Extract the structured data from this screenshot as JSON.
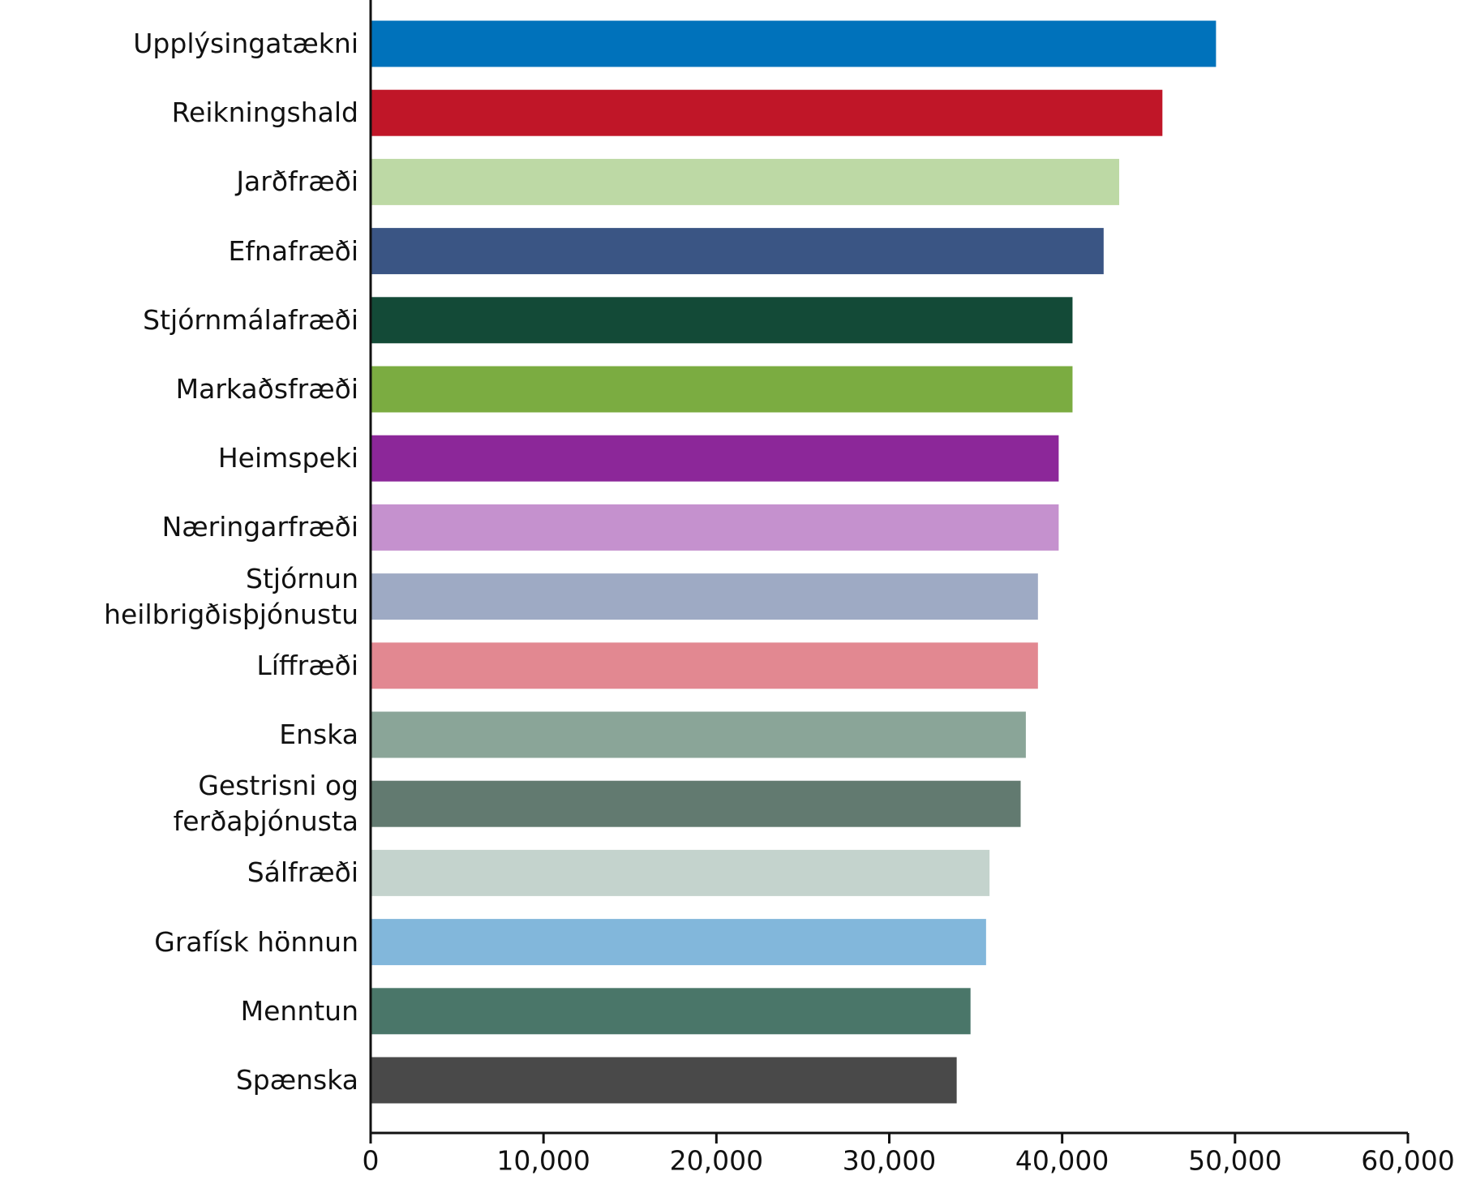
{
  "chart_data": {
    "type": "barh",
    "categories": [
      "Upplýsingatækni",
      "Reikningshald",
      "Jarðfræði",
      "Efnafræði",
      "Stjórnmálafræði",
      "Markaðsfræði",
      "Heimspeki",
      "Næringarfræði",
      "Stjórnun heilbrigðisþjónustu",
      "Líffræði",
      "Enska",
      "Gestrisni og ferðaþjónusta",
      "Sálfræði",
      "Grafísk hönnun",
      "Menntun",
      "Spænska"
    ],
    "values": [
      48900,
      45800,
      43300,
      42400,
      40600,
      40600,
      39800,
      39800,
      38600,
      38600,
      37900,
      37600,
      35800,
      35600,
      34700,
      33900
    ],
    "colors": [
      "#0072bb",
      "#c01628",
      "#bdd9a5",
      "#3a5584",
      "#134a37",
      "#7bac41",
      "#8c2799",
      "#c591ce",
      "#9eaac4",
      "#e28891",
      "#8aa598",
      "#627a70",
      "#c4d3cd",
      "#82b7db",
      "#4a7669",
      "#494949"
    ],
    "xlim": [
      0,
      60000
    ],
    "xticks": [
      0,
      {
        "value": 10000,
        "label": "10,000"
      },
      {
        "value": 20000,
        "label": "20,000"
      },
      {
        "value": 30000,
        "label": "30,000"
      },
      {
        "value": 40000,
        "label": "40,000"
      },
      {
        "value": 50000,
        "label": "50,000"
      },
      {
        "value": 60000,
        "label": "60,000"
      }
    ],
    "grid": false
  }
}
